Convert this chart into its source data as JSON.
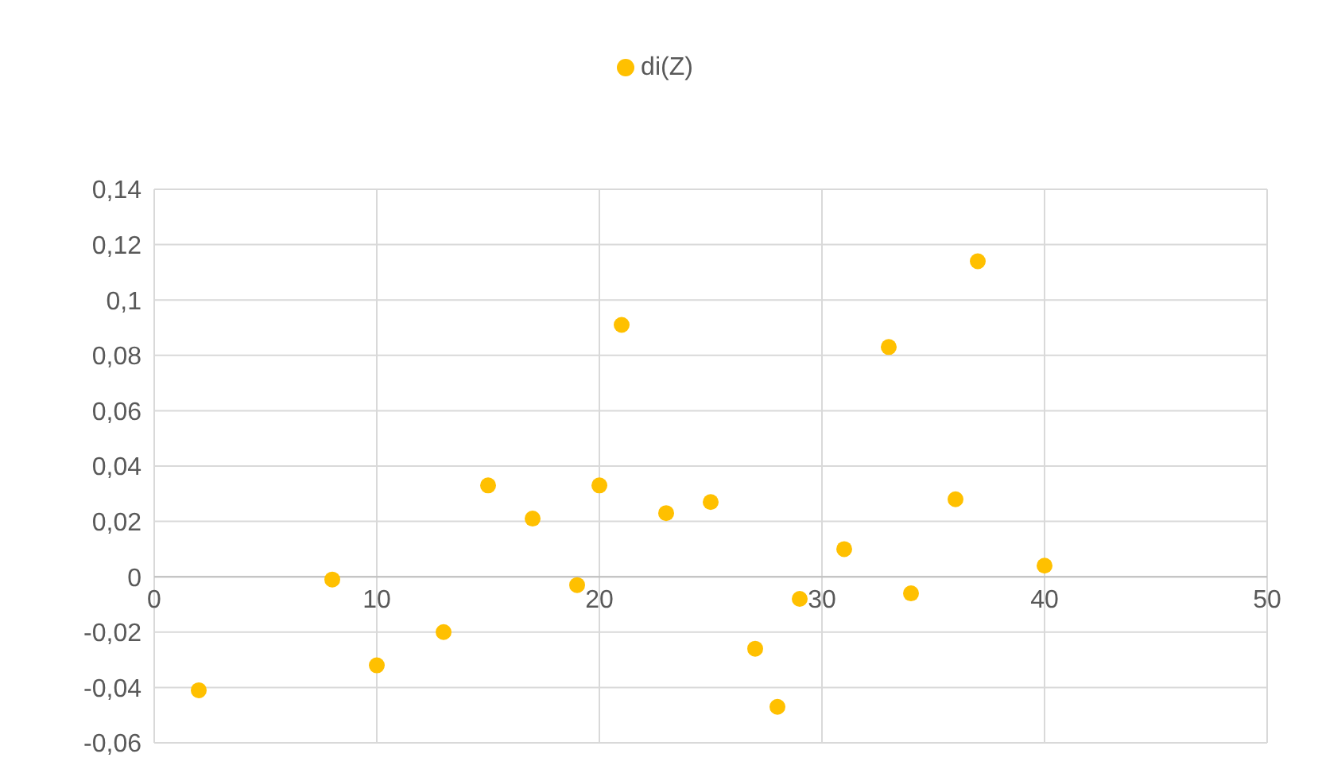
{
  "chart_data": {
    "type": "scatter",
    "x": [
      2,
      8,
      10,
      13,
      15,
      17,
      19,
      20,
      21,
      23,
      25,
      27,
      28,
      29,
      31,
      33,
      34,
      36,
      37,
      40
    ],
    "series": [
      {
        "name": "di(Z)",
        "color": "#ffc000",
        "values": [
          -0.041,
          -0.001,
          -0.032,
          -0.02,
          0.033,
          0.021,
          -0.003,
          0.033,
          0.091,
          0.023,
          0.027,
          -0.026,
          -0.047,
          -0.008,
          0.01,
          0.083,
          -0.006,
          0.028,
          0.114,
          0.004
        ]
      }
    ],
    "xlim": [
      0,
      50
    ],
    "xticks": [
      0,
      10,
      20,
      30,
      40,
      50
    ],
    "ylim": [
      -0.06,
      0.14
    ],
    "yticks": [
      {
        "value": -0.06,
        "label": "-0,06"
      },
      {
        "value": -0.04,
        "label": "-0,04"
      },
      {
        "value": -0.02,
        "label": "-0,02"
      },
      {
        "value": 0,
        "label": "0"
      },
      {
        "value": 0.02,
        "label": "0,02"
      },
      {
        "value": 0.04,
        "label": "0,04"
      },
      {
        "value": 0.06,
        "label": "0,06"
      },
      {
        "value": 0.08,
        "label": "0,08"
      },
      {
        "value": 0.1,
        "label": "0,1"
      },
      {
        "value": 0.12,
        "label": "0,12"
      },
      {
        "value": 0.14,
        "label": "0,14"
      }
    ],
    "grid": true,
    "legend": "top",
    "marker": "circle"
  }
}
